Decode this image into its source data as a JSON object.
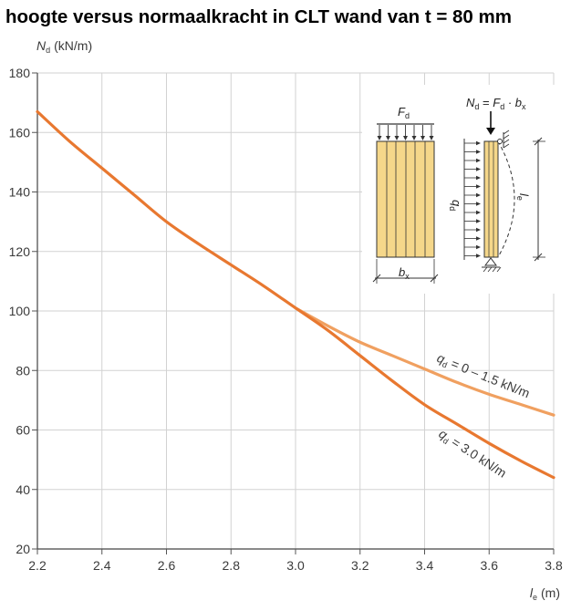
{
  "title": "hoogte versus normaalkracht in CLT wand van t = 80 mm",
  "chart_data": {
    "type": "line",
    "title": "hoogte versus normaalkracht in CLT wand van t = 80 mm",
    "xlabel": {
      "main": "l",
      "sub": "e",
      "unit": "(m)"
    },
    "ylabel": {
      "main": "N",
      "sub": "d",
      "unit": "(kN/m)"
    },
    "xlim": [
      2.2,
      3.8
    ],
    "ylim": [
      20,
      180
    ],
    "xticks": [
      "2.2",
      "2.4",
      "2.6",
      "2.8",
      "3.0",
      "3.2",
      "3.4",
      "3.6",
      "3.8"
    ],
    "yticks": [
      "20",
      "40",
      "60",
      "80",
      "100",
      "120",
      "140",
      "160",
      "180"
    ],
    "grid": true,
    "series": [
      {
        "name": "q_d = 0 – 1.5 kN/m",
        "label": {
          "main": "q",
          "sub": "d",
          "rest": " = 0 – 1.5 kN/m"
        },
        "color": "#f0a060",
        "x": [
          3.0,
          3.1,
          3.2,
          3.3,
          3.4,
          3.5,
          3.6,
          3.7,
          3.8
        ],
        "y": [
          101,
          95,
          89.5,
          85,
          80.5,
          76,
          72,
          68.5,
          65
        ]
      },
      {
        "name": "q_d = 3.0 kN/m",
        "label": {
          "main": "q",
          "sub": "d",
          "rest": " = 3.0 kN/m"
        },
        "color": "#e87830",
        "x": [
          2.2,
          2.3,
          2.4,
          2.5,
          2.6,
          2.7,
          2.8,
          2.9,
          3.0,
          3.1,
          3.2,
          3.3,
          3.4,
          3.5,
          3.6,
          3.7,
          3.8
        ],
        "y": [
          167,
          157,
          148,
          139,
          130,
          122.5,
          115.5,
          108.5,
          101,
          93.5,
          85,
          76.5,
          68.5,
          62,
          55.5,
          49.5,
          44
        ]
      }
    ]
  },
  "inset": {
    "load_label": {
      "main": "F",
      "sub": "d"
    },
    "width_label": {
      "main": "b",
      "sub": "x"
    },
    "formula": {
      "n": "N",
      "n_sub": "d",
      "eq": " = ",
      "f": "F",
      "f_sub": "d",
      "dot": " · ",
      "b": "b",
      "b_sub": "x"
    },
    "q_label": {
      "main": "q",
      "sub": "d"
    },
    "l_label": {
      "main": "l",
      "sub": "e"
    },
    "colors": {
      "panel": "#f5d78a",
      "edge": "#333333"
    }
  }
}
